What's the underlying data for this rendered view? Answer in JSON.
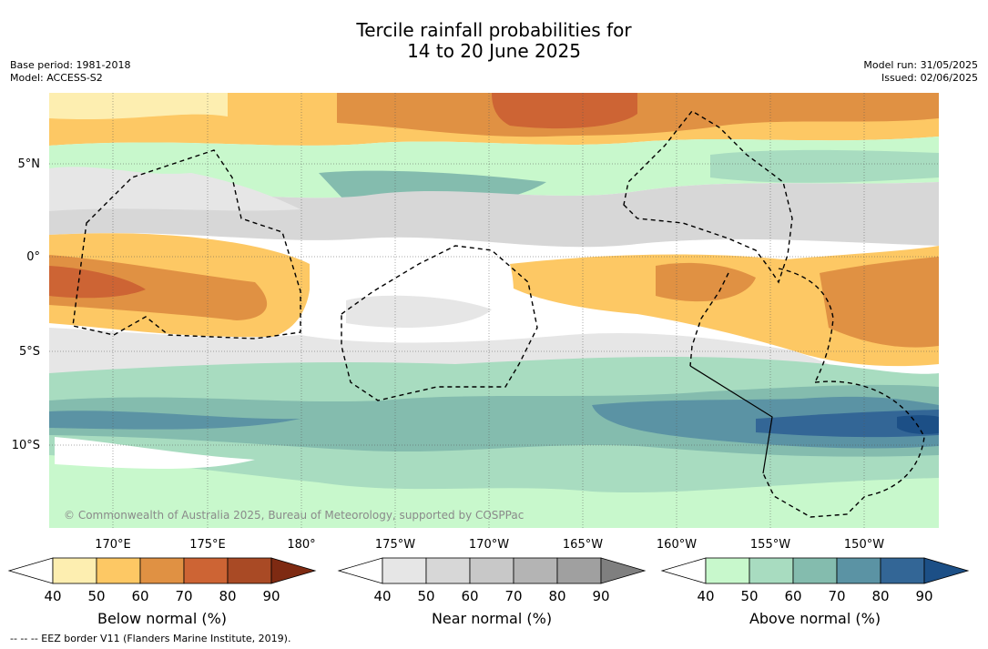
{
  "title_line1": "Tercile rainfall probabilities for",
  "title_line2": "14 to 20 June 2025",
  "base_period": "Base period: 1981-2018",
  "model": "Model: ACCESS-S2",
  "model_run": "Model run: 31/05/2025",
  "issued": "Issued: 02/06/2025",
  "copyright": "© Commonwealth of Australia 2025, Bureau of Meteorology, supported by COSPPac",
  "footnote": "-- -- -- EEZ border V11 (Flanders Marine Institute, 2019).",
  "lat_labels": [
    "5°N",
    "0°",
    "5°S",
    "10°S"
  ],
  "lon_labels": [
    "170°E",
    "175°E",
    "180°",
    "175°W",
    "170°W",
    "165°W",
    "160°W",
    "155°W",
    "150°W"
  ],
  "colorbars": [
    {
      "label": "Below normal (%)",
      "ticks": [
        "40",
        "50",
        "60",
        "70",
        "80",
        "90"
      ],
      "colors": [
        "#fdeeb0",
        "#fdc864",
        "#e09143",
        "#cd6434",
        "#a94a25",
        "#7e2a12"
      ]
    },
    {
      "label": "Near normal (%)",
      "ticks": [
        "40",
        "50",
        "60",
        "70",
        "80",
        "90"
      ],
      "colors": [
        "#e6e6e6",
        "#d7d7d7",
        "#c8c8c8",
        "#b4b4b4",
        "#a0a0a0",
        "#7f7f7f"
      ]
    },
    {
      "label": "Above normal (%)",
      "ticks": [
        "40",
        "50",
        "60",
        "70",
        "80",
        "90"
      ],
      "colors": [
        "#c8f8cc",
        "#a8dcc0",
        "#84bcae",
        "#5b93a4",
        "#336696",
        "#1c4f86"
      ]
    }
  ]
}
